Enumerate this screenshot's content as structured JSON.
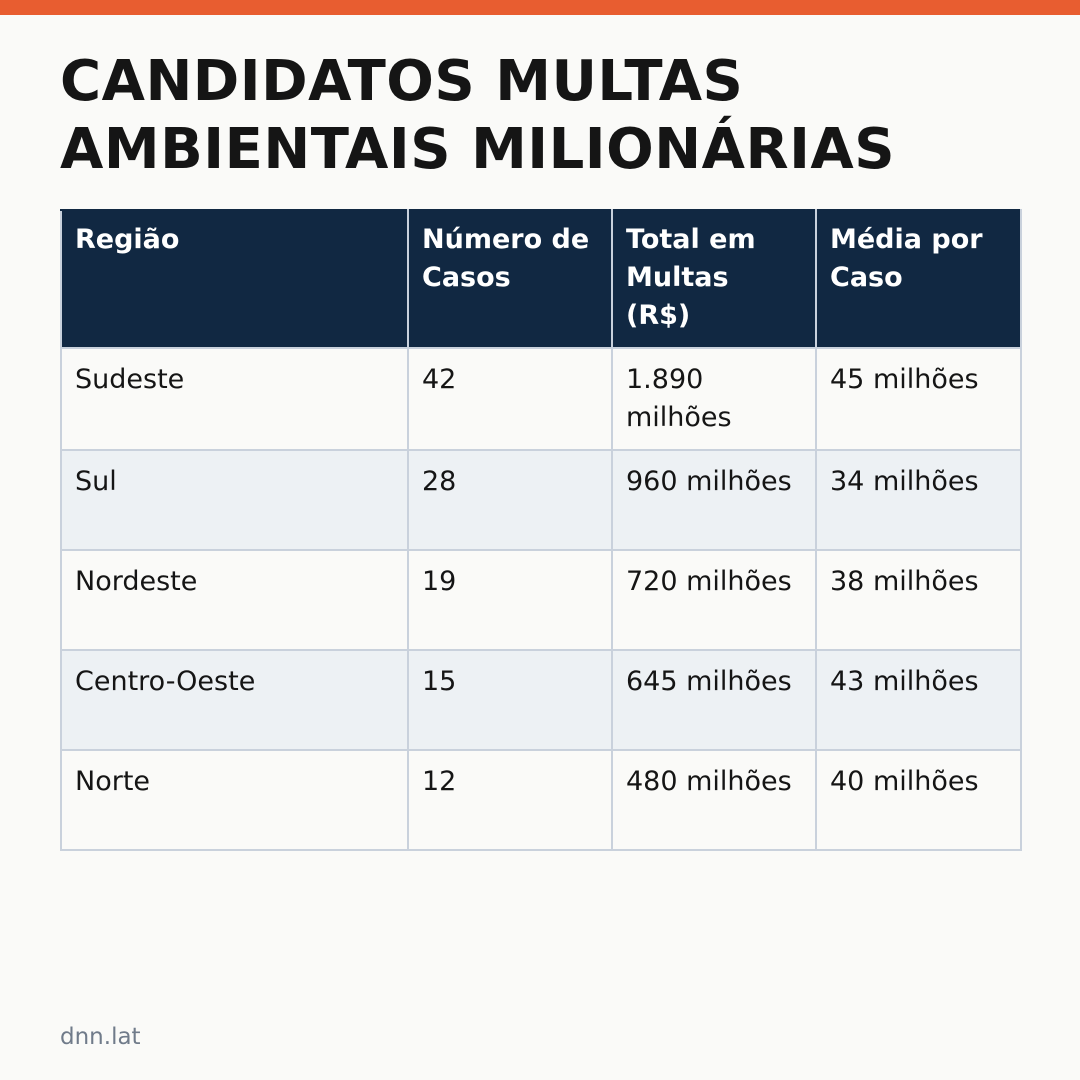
{
  "colors": {
    "accent": "#e85d30",
    "header_bg": "#112842",
    "row_alt": "#edf1f4",
    "background": "#fafaf8",
    "footer_text": "#707b8a"
  },
  "title_line1": "CANDIDATOS MULTAS",
  "title_line2": "AMBIENTAIS MILIONÁRIAS",
  "table": {
    "headers": [
      "Região",
      "Número de Casos",
      "Total em Multas (R$)",
      "Média por Caso"
    ],
    "rows": [
      [
        "Sudeste",
        "42",
        "1.890 milhões",
        "45 milhões"
      ],
      [
        "Sul",
        "28",
        "960 milhões",
        "34 milhões"
      ],
      [
        "Nordeste",
        "19",
        "720 milhões",
        "38 milhões"
      ],
      [
        "Centro-Oeste",
        "15",
        "645 milhões",
        "43 milhões"
      ],
      [
        "Norte",
        "12",
        "480 milhões",
        "40 milhões"
      ]
    ]
  },
  "footer": "dnn.lat"
}
